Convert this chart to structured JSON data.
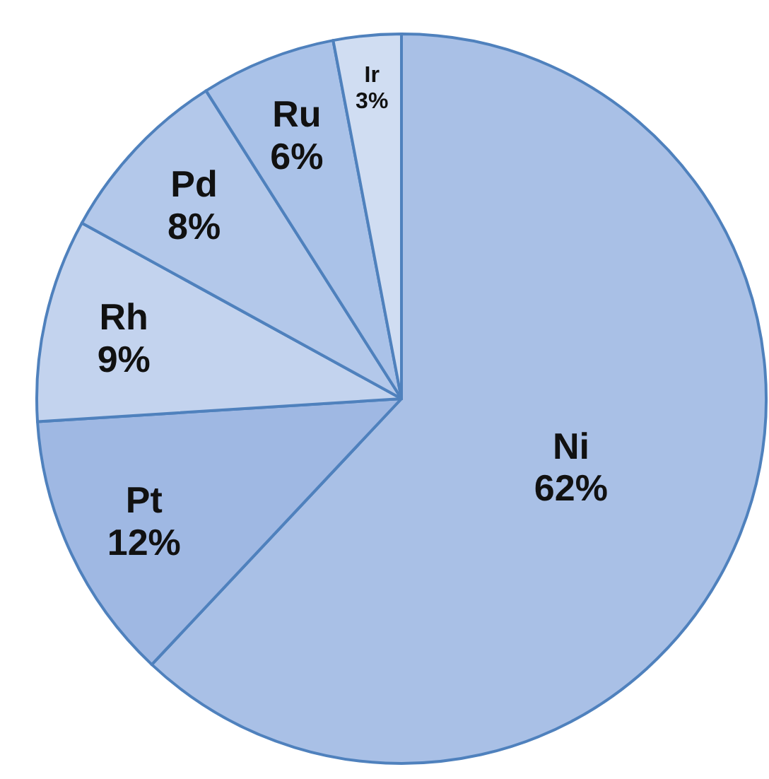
{
  "chart_data": {
    "type": "pie",
    "categories": [
      "Ni",
      "Pt",
      "Rh",
      "Pd",
      "Ru",
      "Ir"
    ],
    "values": [
      62,
      12,
      9,
      8,
      6,
      3
    ],
    "colors": [
      "#a9c0e6",
      "#9fb8e3",
      "#c3d3ee",
      "#b3c8ea",
      "#aac2e8",
      "#d0ddf2"
    ],
    "value_labels": [
      "62%",
      "12%",
      "9%",
      "8%",
      "6%",
      "3%"
    ]
  }
}
